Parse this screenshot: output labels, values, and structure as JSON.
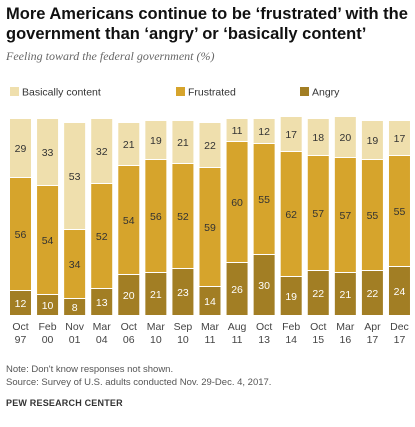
{
  "title": "More Americans continue to be ‘frustrated’ with the government than ‘angry’ or ‘basically content’",
  "subtitle": "Feeling toward the federal government (%)",
  "note": "Note: Don't know responses not shown.",
  "source": "Source: Survey of U.S. adults conducted Nov. 29-Dec. 4, 2017.",
  "brand": "PEW RESEARCH CENTER",
  "colors": {
    "content": "#EFDFAD",
    "frustrated": "#D6A42C",
    "angry": "#A27E24"
  },
  "chart_data": {
    "type": "bar",
    "stacked": true,
    "legend_position": "top",
    "categories": [
      [
        "Oct",
        "97"
      ],
      [
        "Feb",
        "00"
      ],
      [
        "Nov",
        "01"
      ],
      [
        "Mar",
        "04"
      ],
      [
        "Oct",
        "06"
      ],
      [
        "Mar",
        "10"
      ],
      [
        "Sep",
        "10"
      ],
      [
        "Mar",
        "11"
      ],
      [
        "Aug",
        "11"
      ],
      [
        "Oct",
        "13"
      ],
      [
        "Feb",
        "14"
      ],
      [
        "Oct",
        "15"
      ],
      [
        "Mar",
        "16"
      ],
      [
        "Apr",
        "17"
      ],
      [
        "Dec",
        "17"
      ]
    ],
    "series": [
      {
        "name": "Angry",
        "key": "angry",
        "values": [
          12,
          10,
          8,
          13,
          20,
          21,
          23,
          14,
          26,
          30,
          19,
          22,
          21,
          22,
          24
        ]
      },
      {
        "name": "Frustrated",
        "key": "frustrated",
        "values": [
          56,
          54,
          34,
          52,
          54,
          56,
          52,
          59,
          60,
          55,
          62,
          57,
          57,
          55,
          55
        ]
      },
      {
        "name": "Basically content",
        "key": "content",
        "values": [
          29,
          33,
          53,
          32,
          21,
          19,
          21,
          22,
          11,
          12,
          17,
          18,
          20,
          19,
          17
        ]
      }
    ],
    "legend_order": [
      "Basically content",
      "Frustrated",
      "Angry"
    ]
  }
}
